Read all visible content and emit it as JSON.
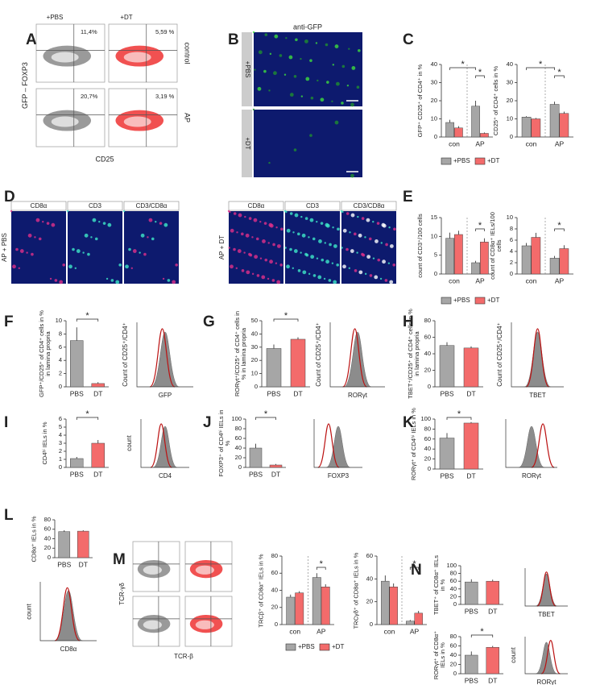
{
  "panel_letters": [
    "A",
    "B",
    "C",
    "D",
    "E",
    "F",
    "G",
    "H",
    "I",
    "J",
    "K",
    "L",
    "M",
    "N"
  ],
  "A": {
    "cols": [
      "+PBS",
      "+DT"
    ],
    "rows": [
      "control",
      "AP"
    ],
    "gates": [
      "11,4%",
      "5,59 %",
      "20,7%",
      "3,19 %"
    ],
    "ylabel": "GFP – FOXP3",
    "xlabel": "CD25"
  },
  "B": {
    "title": "anti-GFP",
    "rows": [
      "+PBS",
      "+DT"
    ]
  },
  "D": {
    "channels": [
      "CD8α",
      "CD3",
      "CD3/CD8α",
      "CD8α",
      "CD3",
      "CD3/CD8α"
    ],
    "rows": [
      "AP + PBS",
      "AP + DT"
    ]
  },
  "M_flow": {
    "ylabel": "TCR-γδ",
    "xlabel": "TCR-β"
  },
  "legends": {
    "C": [
      {
        "name": "+PBS",
        "color": "#a6a6a6"
      },
      {
        "name": "+DT",
        "color": "#f36b6b"
      }
    ],
    "E": [
      {
        "name": "+PBS",
        "color": "#a6a6a6"
      },
      {
        "name": "+DT",
        "color": "#f36b6b"
      }
    ],
    "M": [
      {
        "name": "+PBS",
        "color": "#a6a6a6"
      },
      {
        "name": "+DT",
        "color": "#f36b6b"
      }
    ]
  },
  "histograms": [
    {
      "ylabel": "Count of CD25⁺/CD4⁺",
      "xlabel": "GFP"
    },
    {
      "ylabel": "Count of CD25⁺/CD4⁺",
      "xlabel": "RORγt"
    },
    {
      "ylabel": "Count of CD25⁺/CD4⁺",
      "xlabel": "TBET"
    },
    {
      "ylabel": "count",
      "xlabel": "CD4"
    },
    {
      "xlabel": "FOXP3"
    },
    {
      "xlabel": "RORγt"
    },
    {
      "ylabel": "count",
      "xlabel": "CD8α"
    },
    {
      "xlabel": "TBET"
    },
    {
      "ylabel": "count",
      "xlabel": "RORγt"
    }
  ],
  "chart_data": [
    {
      "type": "bar",
      "ylabel": "GFP⁺ CD25⁺ of CD4⁺ in %",
      "categories": [
        "con",
        "AP"
      ],
      "series": [
        {
          "color": "#a6a6a6",
          "values": [
            8,
            17
          ],
          "errors": [
            1.5,
            3
          ]
        },
        {
          "color": "#f36b6b",
          "values": [
            5,
            2
          ],
          "errors": [
            1,
            0.5
          ]
        }
      ],
      "ylim": [
        0,
        40
      ],
      "yticks": [
        0,
        10,
        20,
        30,
        40
      ],
      "annotations": [
        "*",
        "*"
      ]
    },
    {
      "type": "bar",
      "ylabel": "CD25⁺ of CD4⁺ cells in %",
      "categories": [
        "con",
        "AP"
      ],
      "series": [
        {
          "color": "#a6a6a6",
          "values": [
            11,
            18
          ],
          "errors": [
            0.5,
            1.5
          ]
        },
        {
          "color": "#f36b6b",
          "values": [
            10,
            13
          ],
          "errors": [
            0.5,
            1
          ]
        }
      ],
      "ylim": [
        0,
        40
      ],
      "yticks": [
        0,
        10,
        20,
        30,
        40
      ],
      "annotations": [
        "*",
        "*"
      ]
    },
    {
      "type": "bar",
      "ylabel": "count of CD3⁺/100 cells",
      "categories": [
        "con",
        "AP"
      ],
      "series": [
        {
          "color": "#a6a6a6",
          "values": [
            9.5,
            3
          ],
          "errors": [
            1.5,
            0.5
          ]
        },
        {
          "color": "#f36b6b",
          "values": [
            10.5,
            8.5
          ],
          "errors": [
            1,
            1
          ]
        }
      ],
      "ylim": [
        0,
        15
      ],
      "yticks": [
        0,
        5,
        10,
        15
      ],
      "annotations": [
        "*"
      ]
    },
    {
      "type": "bar",
      "ylabel": "count of CD8α⁺ IELs/100 cells",
      "categories": [
        "con",
        "AP"
      ],
      "series": [
        {
          "color": "#a6a6a6",
          "values": [
            5,
            2.8
          ],
          "errors": [
            0.5,
            0.4
          ]
        },
        {
          "color": "#f36b6b",
          "values": [
            6.5,
            4.5
          ],
          "errors": [
            0.8,
            0.6
          ]
        }
      ],
      "ylim": [
        0,
        10
      ],
      "yticks": [
        0,
        2,
        4,
        6,
        8,
        10
      ],
      "annotations": [
        "*"
      ]
    },
    {
      "type": "bar",
      "ylabel": "GFP⁺/CD25⁺ of CD4⁺ cells in % in lamina propria",
      "categories": [
        "PBS",
        "DT"
      ],
      "colors": [
        "#a6a6a6",
        "#f36b6b"
      ],
      "values": [
        7,
        0.5
      ],
      "errors": [
        2,
        0.2
      ],
      "ylim": [
        0,
        10
      ],
      "yticks": [
        0,
        2,
        4,
        6,
        8,
        10
      ],
      "annotations": [
        "*"
      ]
    },
    {
      "type": "bar",
      "ylabel": "RORγt⁺/CD25⁺ of CD4⁺ cells in % in lamina propria",
      "categories": [
        "PBS",
        "DT"
      ],
      "colors": [
        "#a6a6a6",
        "#f36b6b"
      ],
      "values": [
        29,
        36
      ],
      "errors": [
        3,
        1.5
      ],
      "ylim": [
        0,
        50
      ],
      "yticks": [
        0,
        10,
        20,
        30,
        40,
        50
      ],
      "annotations": [
        "*"
      ]
    },
    {
      "type": "bar",
      "ylabel": "TBET⁺/CD25⁺ of CD4⁺ cells in % in lamina propria",
      "categories": [
        "PBS",
        "DT"
      ],
      "colors": [
        "#a6a6a6",
        "#f36b6b"
      ],
      "values": [
        50,
        47
      ],
      "errors": [
        4,
        2
      ],
      "ylim": [
        0,
        80
      ],
      "yticks": [
        0,
        20,
        40,
        60,
        80
      ]
    },
    {
      "type": "bar",
      "ylabel": "CD4ʰⁱ IELs in %",
      "categories": [
        "PBS",
        "DT"
      ],
      "colors": [
        "#a6a6a6",
        "#f36b6b"
      ],
      "values": [
        1.1,
        3
      ],
      "errors": [
        0.2,
        0.4
      ],
      "ylim": [
        0,
        6
      ],
      "yticks": [
        0,
        1,
        2,
        3,
        4,
        5,
        6
      ],
      "annotations": [
        "*"
      ]
    },
    {
      "type": "bar",
      "ylabel": "FOXP3⁺ of CD4ʰⁱ IELs in %",
      "categories": [
        "PBS",
        "DT"
      ],
      "colors": [
        "#a6a6a6",
        "#f36b6b"
      ],
      "values": [
        40,
        5
      ],
      "errors": [
        9,
        2
      ],
      "ylim": [
        0,
        100
      ],
      "yticks": [
        0,
        20,
        40,
        60,
        80,
        100
      ],
      "annotations": [
        "*"
      ]
    },
    {
      "type": "bar",
      "ylabel": "RORγt⁺ of CD4ʰⁱ IELs in %",
      "categories": [
        "PBS",
        "DT"
      ],
      "colors": [
        "#a6a6a6",
        "#f36b6b"
      ],
      "values": [
        62,
        92
      ],
      "errors": [
        10,
        2
      ],
      "ylim": [
        0,
        100
      ],
      "yticks": [
        0,
        20,
        40,
        60,
        80,
        100
      ],
      "annotations": [
        "*"
      ]
    },
    {
      "type": "bar",
      "ylabel": "CD8α⁺ IELs in %",
      "categories": [
        "PBS",
        "DT"
      ],
      "colors": [
        "#a6a6a6",
        "#f36b6b"
      ],
      "values": [
        55,
        56
      ],
      "errors": [
        3,
        2
      ],
      "ylim": [
        0,
        80
      ],
      "yticks": [
        0,
        20,
        40,
        60,
        80
      ]
    },
    {
      "type": "bar",
      "ylabel": "TRCβ⁺ of CD8α⁺ IELs in %",
      "categories": [
        "con",
        "AP"
      ],
      "series": [
        {
          "color": "#a6a6a6",
          "values": [
            32,
            55
          ],
          "errors": [
            3,
            5
          ]
        },
        {
          "color": "#f36b6b",
          "values": [
            37,
            44
          ],
          "errors": [
            2,
            3
          ]
        }
      ],
      "ylim": [
        0,
        80
      ],
      "yticks": [
        0,
        20,
        40,
        60,
        80
      ],
      "annotations": [
        "*"
      ]
    },
    {
      "type": "bar",
      "ylabel": "TRCγδ⁺ of CD8α⁺ IELs in %",
      "categories": [
        "con",
        "AP"
      ],
      "series": [
        {
          "color": "#a6a6a6",
          "values": [
            38,
            3
          ],
          "errors": [
            5,
            1
          ]
        },
        {
          "color": "#f36b6b",
          "values": [
            33,
            10
          ],
          "errors": [
            3,
            2
          ]
        }
      ],
      "ylim": [
        0,
        60
      ],
      "yticks": [
        0,
        20,
        40,
        60
      ],
      "annotations": [
        "*"
      ]
    },
    {
      "type": "bar",
      "ylabel": "TBET⁺ of CD8α⁺ IELs in %",
      "categories": [
        "PBS",
        "DT"
      ],
      "colors": [
        "#a6a6a6",
        "#f36b6b"
      ],
      "values": [
        58,
        60
      ],
      "errors": [
        7,
        4
      ],
      "ylim": [
        0,
        100
      ],
      "yticks": [
        0,
        20,
        40,
        60,
        80,
        100
      ]
    },
    {
      "type": "bar",
      "ylabel": "RORγt⁺ of CD8α⁺ IELs in %",
      "categories": [
        "PBS",
        "DT"
      ],
      "colors": [
        "#a6a6a6",
        "#f36b6b"
      ],
      "values": [
        40,
        57
      ],
      "errors": [
        8,
        3
      ],
      "ylim": [
        0,
        80
      ],
      "yticks": [
        0,
        20,
        40,
        60,
        80
      ],
      "annotations": [
        "*"
      ]
    }
  ]
}
